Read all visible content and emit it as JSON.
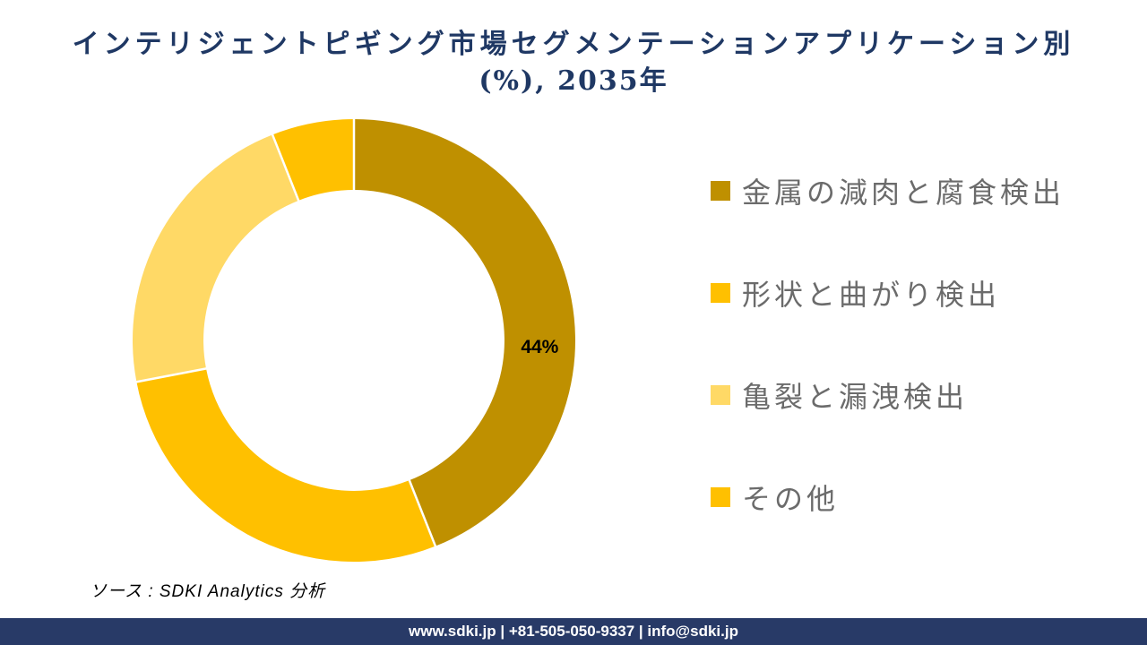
{
  "title": {
    "line1": "インテリジェントピギング市場セグメンテーションアプリケーション別",
    "line2": "(%), 2035年",
    "color": "#1F3864"
  },
  "chart_data": {
    "type": "pie",
    "subtype": "donut",
    "title": "インテリジェントピギング市場セグメンテーションアプリケーション別 (%), 2035年",
    "categories": [
      "金属の減肉と腐食検出",
      "形状と曲がり検出",
      "亀裂と漏洩検出",
      "その他"
    ],
    "values": [
      44,
      28,
      22,
      6
    ],
    "unit": "%",
    "colors": [
      "#BF9000",
      "#FFC000",
      "#FFD966",
      "#FFC000"
    ],
    "start_angle_deg": 0,
    "direction": "clockwise",
    "inner_radius_ratio": 0.68,
    "outer_radius_px": 247,
    "separator_color": "#FFFFFF",
    "legend_position": "right",
    "data_labels": [
      {
        "index": 0,
        "text": "44%",
        "angle_deg": 92,
        "radius_ratio": 0.84,
        "color": "#000000"
      }
    ]
  },
  "legend": {
    "text_color": "#6B6B6B",
    "items": [
      {
        "label": "金属の減肉と腐食検出",
        "color": "#BF9000"
      },
      {
        "label": "形状と曲がり検出",
        "color": "#FFC000"
      },
      {
        "label": "亀裂と漏洩検出",
        "color": "#FFD966"
      },
      {
        "label": "その他",
        "color": "#FFC000"
      }
    ]
  },
  "source": {
    "text": "ソース : SDKI Analytics 分析"
  },
  "footer": {
    "text": "www.sdki.jp | +81-505-050-9337 | info@sdki.jp",
    "background": "#283A67"
  }
}
